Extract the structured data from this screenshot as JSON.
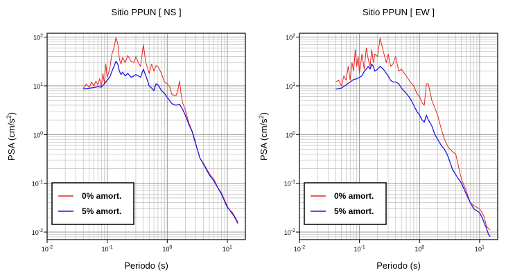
{
  "chart_data": [
    {
      "type": "line",
      "title": "Sitio PPUN [ NS ]",
      "xlabel": "Periodo (s)",
      "ylabel": "PSA (cm/s²)",
      "xscale": "log",
      "yscale": "log",
      "xlim": [
        0.01,
        20
      ],
      "ylim": [
        0.007,
        120
      ],
      "x_ticks": [
        {
          "v": 0.01,
          "b": "10",
          "e": "-2"
        },
        {
          "v": 0.1,
          "b": "10",
          "e": "-1"
        },
        {
          "v": 1,
          "b": "10",
          "e": "0"
        },
        {
          "v": 10,
          "b": "10",
          "e": "1"
        }
      ],
      "y_ticks": [
        {
          "v": 0.01,
          "b": "10",
          "e": "-2"
        },
        {
          "v": 0.1,
          "b": "10",
          "e": "-1"
        },
        {
          "v": 1,
          "b": "10",
          "e": "0"
        },
        {
          "v": 10,
          "b": "10",
          "e": "1"
        },
        {
          "v": 100,
          "b": "10",
          "e": "2"
        }
      ],
      "grid": true,
      "legend_position": "bottom-left",
      "series": [
        {
          "name": "0% amort.",
          "color": "#e8231c",
          "points": [
            [
              0.04,
              8.8
            ],
            [
              0.045,
              11
            ],
            [
              0.05,
              9.2
            ],
            [
              0.055,
              12
            ],
            [
              0.06,
              10
            ],
            [
              0.065,
              12.5
            ],
            [
              0.07,
              10.5
            ],
            [
              0.075,
              14
            ],
            [
              0.08,
              9.5
            ],
            [
              0.085,
              18
            ],
            [
              0.09,
              11
            ],
            [
              0.095,
              28
            ],
            [
              0.1,
              15
            ],
            [
              0.11,
              22
            ],
            [
              0.12,
              45
            ],
            [
              0.13,
              60
            ],
            [
              0.14,
              98
            ],
            [
              0.15,
              75
            ],
            [
              0.16,
              35
            ],
            [
              0.17,
              28
            ],
            [
              0.18,
              38
            ],
            [
              0.2,
              30
            ],
            [
              0.22,
              42
            ],
            [
              0.25,
              32
            ],
            [
              0.28,
              30
            ],
            [
              0.3,
              40
            ],
            [
              0.33,
              30
            ],
            [
              0.36,
              25
            ],
            [
              0.4,
              70
            ],
            [
              0.44,
              30
            ],
            [
              0.5,
              18
            ],
            [
              0.55,
              28
            ],
            [
              0.6,
              20
            ],
            [
              0.65,
              26
            ],
            [
              0.7,
              25
            ],
            [
              0.8,
              18
            ],
            [
              0.9,
              12
            ],
            [
              1.0,
              11
            ],
            [
              1.1,
              9.5
            ],
            [
              1.2,
              6.5
            ],
            [
              1.3,
              6.5
            ],
            [
              1.4,
              6.3
            ],
            [
              1.5,
              8
            ],
            [
              1.6,
              12.5
            ],
            [
              1.7,
              7
            ],
            [
              1.8,
              4.5
            ],
            [
              2.0,
              3.2
            ],
            [
              2.3,
              1.7
            ],
            [
              2.6,
              1.2
            ],
            [
              3.0,
              0.65
            ],
            [
              3.5,
              0.33
            ],
            [
              4.0,
              0.26
            ],
            [
              5.0,
              0.16
            ],
            [
              6.0,
              0.12
            ],
            [
              7.0,
              0.08
            ],
            [
              8.0,
              0.064
            ],
            [
              10.0,
              0.034
            ],
            [
              11.0,
              0.028
            ],
            [
              12.0,
              0.026
            ],
            [
              13.0,
              0.022
            ],
            [
              15.0,
              0.016
            ]
          ]
        },
        {
          "name": "5% amort.",
          "color": "#1a1ae0",
          "points": [
            [
              0.04,
              8.6
            ],
            [
              0.05,
              8.9
            ],
            [
              0.06,
              9.2
            ],
            [
              0.07,
              9.6
            ],
            [
              0.08,
              9.4
            ],
            [
              0.09,
              11
            ],
            [
              0.1,
              13
            ],
            [
              0.11,
              15
            ],
            [
              0.12,
              20
            ],
            [
              0.13,
              25
            ],
            [
              0.14,
              32
            ],
            [
              0.15,
              28
            ],
            [
              0.16,
              20
            ],
            [
              0.17,
              17
            ],
            [
              0.18,
              19
            ],
            [
              0.2,
              16
            ],
            [
              0.22,
              18
            ],
            [
              0.25,
              15
            ],
            [
              0.28,
              16
            ],
            [
              0.3,
              17
            ],
            [
              0.33,
              16
            ],
            [
              0.36,
              15
            ],
            [
              0.4,
              22
            ],
            [
              0.45,
              15
            ],
            [
              0.5,
              10
            ],
            [
              0.55,
              9
            ],
            [
              0.6,
              8
            ],
            [
              0.65,
              11
            ],
            [
              0.7,
              10.5
            ],
            [
              0.8,
              8
            ],
            [
              0.9,
              7
            ],
            [
              1.0,
              5.8
            ],
            [
              1.2,
              4.3
            ],
            [
              1.4,
              4.0
            ],
            [
              1.6,
              4.2
            ],
            [
              1.8,
              3.3
            ],
            [
              2.0,
              2.5
            ],
            [
              2.3,
              1.6
            ],
            [
              2.6,
              1.15
            ],
            [
              3.0,
              0.62
            ],
            [
              3.5,
              0.33
            ],
            [
              4.0,
              0.25
            ],
            [
              5.0,
              0.15
            ],
            [
              6.0,
              0.11
            ],
            [
              7.0,
              0.08
            ],
            [
              8.0,
              0.06
            ],
            [
              10.0,
              0.032
            ],
            [
              11.0,
              0.028
            ],
            [
              12.0,
              0.024
            ],
            [
              13.0,
              0.021
            ],
            [
              15.0,
              0.015
            ]
          ]
        }
      ]
    },
    {
      "type": "line",
      "title": "Sitio PPUN [ EW ]",
      "xlabel": "Periodo (s)",
      "ylabel": "PSA (cm/s²)",
      "xscale": "log",
      "yscale": "log",
      "xlim": [
        0.01,
        20
      ],
      "ylim": [
        0.007,
        120
      ],
      "x_ticks": [
        {
          "v": 0.01,
          "b": "10",
          "e": "-2"
        },
        {
          "v": 0.1,
          "b": "10",
          "e": "-1"
        },
        {
          "v": 1,
          "b": "10",
          "e": "0"
        },
        {
          "v": 10,
          "b": "10",
          "e": "1"
        }
      ],
      "y_ticks": [
        {
          "v": 0.01,
          "b": "10",
          "e": "-2"
        },
        {
          "v": 0.1,
          "b": "10",
          "e": "-1"
        },
        {
          "v": 1,
          "b": "10",
          "e": "0"
        },
        {
          "v": 10,
          "b": "10",
          "e": "1"
        },
        {
          "v": 100,
          "b": "10",
          "e": "2"
        }
      ],
      "grid": true,
      "legend_position": "bottom-left",
      "series": [
        {
          "name": "0% amort.",
          "color": "#e8231c",
          "points": [
            [
              0.04,
              12
            ],
            [
              0.045,
              13
            ],
            [
              0.05,
              10
            ],
            [
              0.055,
              16
            ],
            [
              0.06,
              13
            ],
            [
              0.065,
              25
            ],
            [
              0.07,
              13
            ],
            [
              0.075,
              30
            ],
            [
              0.08,
              20
            ],
            [
              0.085,
              55
            ],
            [
              0.09,
              25
            ],
            [
              0.095,
              40
            ],
            [
              0.1,
              18
            ],
            [
              0.11,
              45
            ],
            [
              0.12,
              22
            ],
            [
              0.13,
              60
            ],
            [
              0.14,
              35
            ],
            [
              0.15,
              25
            ],
            [
              0.16,
              55
            ],
            [
              0.17,
              30
            ],
            [
              0.18,
              45
            ],
            [
              0.2,
              40
            ],
            [
              0.22,
              95
            ],
            [
              0.25,
              50
            ],
            [
              0.28,
              30
            ],
            [
              0.3,
              45
            ],
            [
              0.33,
              25
            ],
            [
              0.36,
              28
            ],
            [
              0.4,
              40
            ],
            [
              0.45,
              20
            ],
            [
              0.5,
              22
            ],
            [
              0.6,
              16
            ],
            [
              0.7,
              12
            ],
            [
              0.8,
              10
            ],
            [
              0.9,
              7
            ],
            [
              1.0,
              6
            ],
            [
              1.1,
              4.5
            ],
            [
              1.2,
              4
            ],
            [
              1.3,
              11
            ],
            [
              1.4,
              11
            ],
            [
              1.6,
              5
            ],
            [
              1.8,
              3.5
            ],
            [
              2.0,
              2.5
            ],
            [
              2.3,
              1.3
            ],
            [
              2.6,
              0.8
            ],
            [
              3.0,
              0.55
            ],
            [
              3.5,
              0.45
            ],
            [
              4.0,
              0.4
            ],
            [
              5.0,
              0.12
            ],
            [
              6.0,
              0.07
            ],
            [
              7.0,
              0.04
            ],
            [
              8.0,
              0.035
            ],
            [
              10.0,
              0.03
            ],
            [
              11.0,
              0.025
            ],
            [
              12.0,
              0.02
            ],
            [
              13.0,
              0.013
            ],
            [
              14.0,
              0.012
            ],
            [
              15.0,
              0.011
            ]
          ]
        },
        {
          "name": "5% amort.",
          "color": "#1a1ae0",
          "points": [
            [
              0.04,
              8.5
            ],
            [
              0.05,
              9
            ],
            [
              0.06,
              10.5
            ],
            [
              0.07,
              12
            ],
            [
              0.08,
              13.5
            ],
            [
              0.09,
              14
            ],
            [
              0.1,
              15
            ],
            [
              0.11,
              16
            ],
            [
              0.12,
              20
            ],
            [
              0.13,
              22
            ],
            [
              0.14,
              25
            ],
            [
              0.15,
              22
            ],
            [
              0.16,
              28
            ],
            [
              0.17,
              25
            ],
            [
              0.18,
              20
            ],
            [
              0.2,
              22
            ],
            [
              0.22,
              25
            ],
            [
              0.25,
              22
            ],
            [
              0.28,
              18
            ],
            [
              0.3,
              16
            ],
            [
              0.33,
              13
            ],
            [
              0.36,
              12
            ],
            [
              0.4,
              12
            ],
            [
              0.45,
              11
            ],
            [
              0.5,
              9
            ],
            [
              0.6,
              7
            ],
            [
              0.7,
              5.5
            ],
            [
              0.8,
              4
            ],
            [
              0.9,
              3
            ],
            [
              1.0,
              2.5
            ],
            [
              1.1,
              2
            ],
            [
              1.2,
              1.8
            ],
            [
              1.3,
              2.5
            ],
            [
              1.4,
              2.0
            ],
            [
              1.6,
              1.5
            ],
            [
              1.8,
              1.0
            ],
            [
              2.0,
              0.8
            ],
            [
              2.3,
              0.6
            ],
            [
              2.6,
              0.5
            ],
            [
              3.0,
              0.35
            ],
            [
              3.5,
              0.2
            ],
            [
              4.0,
              0.15
            ],
            [
              5.0,
              0.1
            ],
            [
              6.0,
              0.06
            ],
            [
              7.0,
              0.04
            ],
            [
              8.0,
              0.03
            ],
            [
              10.0,
              0.025
            ],
            [
              11.0,
              0.02
            ],
            [
              12.0,
              0.015
            ],
            [
              13.0,
              0.012
            ],
            [
              14.0,
              0.009
            ],
            [
              15.0,
              0.008
            ]
          ]
        }
      ]
    }
  ]
}
